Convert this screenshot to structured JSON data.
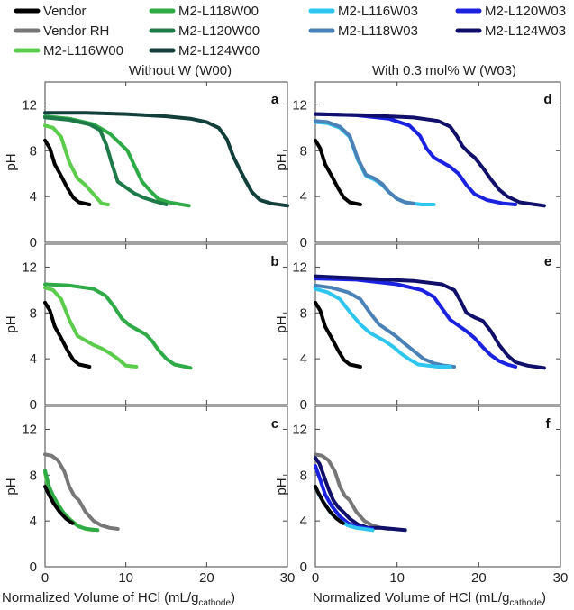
{
  "chart_data": {
    "type": "line",
    "figure": "Titration curves: pH vs normalized volume of HCl",
    "legend": [
      {
        "name": "Vendor",
        "color": "#000000"
      },
      {
        "name": "Vendor RH",
        "color": "#777777"
      },
      {
        "name": "M2-L116W00",
        "color": "#5ccc4c"
      },
      {
        "name": "M2-L118W00",
        "color": "#2eaa46"
      },
      {
        "name": "M2-L120W00",
        "color": "#1e7a48"
      },
      {
        "name": "M2-L124W00",
        "color": "#123f3a"
      },
      {
        "name": "M2-L116W03",
        "color": "#2ec6f0"
      },
      {
        "name": "M2-L118W03",
        "color": "#4a82b8"
      },
      {
        "name": "M2-L120W03",
        "color": "#1a22e0"
      },
      {
        "name": "M2-L124W03",
        "color": "#10106a"
      }
    ],
    "column_titles": [
      "Without W (W00)",
      "With 0.3 mol% W (W03)"
    ],
    "ylabel": "pH",
    "xlabel_prefix": "Normalized Volume of HCl (mL/g",
    "xlabel_sub": "cathode",
    "xlabel_suffix": ")",
    "xlim": [
      0,
      30
    ],
    "ylim": [
      0,
      14
    ],
    "x_ticks": [
      "0",
      "10",
      "20",
      "30"
    ],
    "y_ticks": [
      "0",
      "4",
      "8",
      "12"
    ],
    "panels": [
      {
        "id": "a",
        "col": 0,
        "row": 0,
        "series": [
          {
            "name": "Vendor",
            "x": [
              0,
              0.6,
              1.2,
              2.0,
              2.8,
              3.5,
              4.2,
              5.5
            ],
            "y": [
              8.9,
              8.2,
              6.8,
              5.8,
              4.7,
              3.9,
              3.5,
              3.3
            ]
          },
          {
            "name": "M2-L116W00",
            "x": [
              0,
              1.0,
              2.0,
              3.0,
              4.0,
              5.0,
              6.0,
              7.0,
              7.8
            ],
            "y": [
              10.2,
              10.0,
              9.2,
              7.0,
              5.6,
              5.0,
              4.2,
              3.4,
              3.3
            ]
          },
          {
            "name": "M2-L118W00",
            "x": [
              0,
              3,
              6,
              8,
              9.2,
              10.2,
              11.2,
              12.0,
              13.0,
              14.0,
              15.3,
              17.8
            ],
            "y": [
              11.0,
              10.8,
              10.3,
              9.5,
              8.7,
              8.0,
              6.5,
              5.3,
              4.5,
              3.8,
              3.5,
              3.2
            ]
          },
          {
            "name": "M2-L120W00",
            "x": [
              0,
              3,
              5.5,
              6.8,
              7.6,
              8.3,
              9.0,
              10.0,
              11.0,
              12.2,
              13.5,
              15.0
            ],
            "y": [
              10.9,
              10.7,
              10.3,
              9.8,
              8.5,
              6.8,
              5.3,
              4.8,
              4.3,
              3.9,
              3.6,
              3.3
            ]
          },
          {
            "name": "M2-L124W00",
            "x": [
              0,
              5,
              10,
              15,
              18,
              20,
              21.5,
              22.5,
              23.3,
              24.0,
              24.8,
              25.6,
              26.6,
              28.0,
              30.0
            ],
            "y": [
              11.3,
              11.3,
              11.2,
              11.0,
              10.8,
              10.5,
              10.0,
              9.0,
              7.5,
              6.5,
              5.4,
              4.4,
              3.7,
              3.4,
              3.2
            ]
          }
        ]
      },
      {
        "id": "b",
        "col": 0,
        "row": 1,
        "series": [
          {
            "name": "Vendor",
            "x": [
              0,
              0.6,
              1.2,
              2.0,
              2.8,
              3.5,
              4.2,
              5.5
            ],
            "y": [
              8.9,
              8.2,
              6.8,
              5.8,
              4.7,
              3.9,
              3.5,
              3.3
            ]
          },
          {
            "name": "M2-L116W00",
            "x": [
              0,
              1.0,
              2.0,
              3.0,
              4.0,
              5.0,
              6.0,
              7.0,
              8.0,
              9.0,
              10.0,
              11.3
            ],
            "y": [
              10.2,
              10.0,
              9.2,
              7.4,
              6.0,
              5.6,
              5.2,
              4.9,
              4.5,
              4.0,
              3.4,
              3.3
            ]
          },
          {
            "name": "M2-L118W00",
            "x": [
              0,
              3,
              6,
              7.5,
              8.5,
              9.5,
              10.5,
              11.5,
              12.5,
              13.3,
              14.0,
              15.0,
              16.0,
              18.0
            ],
            "y": [
              10.5,
              10.4,
              10.1,
              9.5,
              8.6,
              7.5,
              6.9,
              6.5,
              6.1,
              5.5,
              4.8,
              4.0,
              3.5,
              3.2
            ]
          }
        ]
      },
      {
        "id": "c",
        "col": 0,
        "row": 2,
        "series": [
          {
            "name": "Vendor RH",
            "x": [
              0,
              0.8,
              1.6,
              2.4,
              3.0,
              3.6,
              4.2,
              5.0,
              6.0,
              7.0,
              8.0,
              9.0
            ],
            "y": [
              9.8,
              9.7,
              9.3,
              8.3,
              7.0,
              6.2,
              5.8,
              4.8,
              4.0,
              3.6,
              3.4,
              3.3
            ]
          },
          {
            "name": "M2-L116W00",
            "x": [
              0,
              0.4,
              1.0,
              1.6,
              2.2,
              3.0,
              4.0,
              5.0,
              6.0
            ],
            "y": [
              8.2,
              6.8,
              6.2,
              5.5,
              4.8,
              4.2,
              3.6,
              3.3,
              3.2
            ]
          },
          {
            "name": "M2-L118W00",
            "x": [
              0,
              0.5,
              1.0,
              1.6,
              2.4,
              3.2,
              4.2,
              5.2,
              6.5
            ],
            "y": [
              8.4,
              7.0,
              6.2,
              5.4,
              4.6,
              4.0,
              3.5,
              3.3,
              3.2
            ]
          },
          {
            "name": "Vendor",
            "x": [
              0,
              0.4,
              1.0,
              1.8,
              2.6,
              3.4
            ],
            "y": [
              7.0,
              6.4,
              5.6,
              4.8,
              4.2,
              3.8
            ]
          }
        ]
      },
      {
        "id": "d",
        "col": 1,
        "row": 0,
        "series": [
          {
            "name": "Vendor",
            "x": [
              0,
              0.6,
              1.2,
              2.0,
              2.8,
              3.5,
              4.2,
              5.5
            ],
            "y": [
              8.9,
              8.2,
              6.8,
              5.8,
              4.7,
              3.9,
              3.5,
              3.3
            ]
          },
          {
            "name": "M2-L116W03",
            "x": [
              0,
              1.5,
              3.0,
              4.2,
              5.2,
              6.2,
              7.2,
              8.2,
              9.0,
              10.0,
              11.0,
              12.0,
              13.0,
              14.5
            ],
            "y": [
              10.5,
              10.4,
              10.0,
              9.2,
              7.2,
              5.8,
              5.5,
              5.0,
              4.4,
              3.8,
              3.5,
              3.4,
              3.3,
              3.3
            ]
          },
          {
            "name": "M2-L118W03",
            "x": [
              0,
              1.5,
              3.0,
              4.2,
              5.2,
              6.2,
              7.2,
              8.2,
              9.0,
              10.0,
              11.0,
              12.0
            ],
            "y": [
              10.6,
              10.5,
              10.1,
              9.3,
              7.3,
              5.9,
              5.6,
              5.1,
              4.4,
              3.8,
              3.5,
              3.4
            ]
          },
          {
            "name": "M2-L120W03",
            "x": [
              0,
              5,
              9,
              11.5,
              12.8,
              13.6,
              14.5,
              15.5,
              16.5,
              17.5,
              18.5,
              19.5,
              21.0,
              23.0,
              24.5
            ],
            "y": [
              11.2,
              11.1,
              10.8,
              10.2,
              9.3,
              8.2,
              7.4,
              7.0,
              6.6,
              6.0,
              5.0,
              4.2,
              3.7,
              3.4,
              3.3
            ]
          },
          {
            "name": "M2-L124W03",
            "x": [
              0,
              6,
              12,
              15,
              16.5,
              17.3,
              18.0,
              18.8,
              19.5,
              20.5,
              21.5,
              22.5,
              23.5,
              25.0,
              28.0
            ],
            "y": [
              11.2,
              11.1,
              10.9,
              10.6,
              10.1,
              9.3,
              8.4,
              7.8,
              7.4,
              6.5,
              5.5,
              4.6,
              4.0,
              3.5,
              3.2
            ]
          }
        ]
      },
      {
        "id": "e",
        "col": 1,
        "row": 1,
        "series": [
          {
            "name": "Vendor",
            "x": [
              0,
              0.6,
              1.2,
              2.0,
              2.8,
              3.5,
              4.2,
              5.5
            ],
            "y": [
              8.9,
              8.2,
              6.8,
              5.8,
              4.7,
              3.9,
              3.5,
              3.3
            ]
          },
          {
            "name": "M2-L118W03",
            "x": [
              0,
              2.0,
              4.0,
              5.5,
              6.7,
              7.8,
              8.8,
              9.8,
              10.8,
              12.0,
              13.2,
              14.5,
              15.8,
              17.0
            ],
            "y": [
              10.4,
              10.2,
              9.8,
              9.2,
              8.0,
              7.0,
              6.5,
              6.0,
              5.4,
              4.7,
              4.0,
              3.6,
              3.4,
              3.3
            ]
          },
          {
            "name": "M2-L116W03",
            "x": [
              0,
              1.5,
              3.0,
              4.3,
              5.5,
              6.6,
              7.6,
              8.6,
              9.6,
              10.6,
              11.6,
              12.6,
              13.8,
              15.0,
              16.5
            ],
            "y": [
              10.1,
              9.8,
              9.2,
              8.0,
              7.0,
              6.3,
              5.9,
              5.5,
              5.0,
              4.4,
              3.9,
              3.5,
              3.4,
              3.3,
              3.3
            ]
          },
          {
            "name": "M2-L120W03",
            "x": [
              0,
              5,
              10,
              13,
              14.5,
              15.5,
              16.5,
              17.5,
              18.5,
              19.5,
              20.5,
              21.5,
              22.5,
              23.5,
              24.5
            ],
            "y": [
              11.0,
              10.9,
              10.5,
              10.0,
              9.4,
              8.4,
              7.4,
              6.9,
              6.4,
              5.8,
              5.0,
              4.3,
              3.8,
              3.5,
              3.3
            ]
          },
          {
            "name": "M2-L124W03",
            "x": [
              0,
              6,
              12,
              15.5,
              17.0,
              17.8,
              18.5,
              19.5,
              20.5,
              21.5,
              22.5,
              23.5,
              24.5,
              26.0,
              28.0
            ],
            "y": [
              11.2,
              11.0,
              10.8,
              10.5,
              10.0,
              9.0,
              8.0,
              7.6,
              7.3,
              6.4,
              5.2,
              4.3,
              3.7,
              3.4,
              3.2
            ]
          }
        ]
      },
      {
        "id": "f",
        "col": 1,
        "row": 2,
        "series": [
          {
            "name": "Vendor RH",
            "x": [
              0,
              0.8,
              1.6,
              2.4,
              3.0,
              3.6,
              4.2,
              5.0,
              6.0,
              7.0,
              8.0,
              9.0
            ],
            "y": [
              9.8,
              9.7,
              9.3,
              8.3,
              7.0,
              6.2,
              5.8,
              4.8,
              4.0,
              3.6,
              3.4,
              3.3
            ]
          },
          {
            "name": "M2-L124W03",
            "x": [
              0,
              0.5,
              1.0,
              1.6,
              2.2,
              2.8,
              3.4,
              4.2,
              5.2,
              6.5,
              8.0,
              9.5,
              11.0
            ],
            "y": [
              9.5,
              9.0,
              8.0,
              6.8,
              5.8,
              5.2,
              4.8,
              4.2,
              3.7,
              3.4,
              3.4,
              3.3,
              3.2
            ]
          },
          {
            "name": "M2-L120W03",
            "x": [
              0,
              0.6,
              1.2,
              2.0,
              3.0,
              4.0,
              5.0,
              6.0,
              7.0
            ],
            "y": [
              8.8,
              7.6,
              6.3,
              5.3,
              4.4,
              3.8,
              3.5,
              3.4,
              3.3
            ]
          },
          {
            "name": "M2-L116W03",
            "x": [
              0,
              0.5,
              1.2,
              2.0,
              3.0,
              4.0,
              5.0,
              6.0,
              7.0
            ],
            "y": [
              7.0,
              6.2,
              5.4,
              4.6,
              4.0,
              3.6,
              3.4,
              3.3,
              3.2
            ]
          },
          {
            "name": "Vendor",
            "x": [
              0,
              0.4,
              1.0,
              1.8,
              2.6,
              3.4
            ],
            "y": [
              7.0,
              6.4,
              5.6,
              4.8,
              4.2,
              3.8
            ]
          }
        ]
      }
    ]
  }
}
